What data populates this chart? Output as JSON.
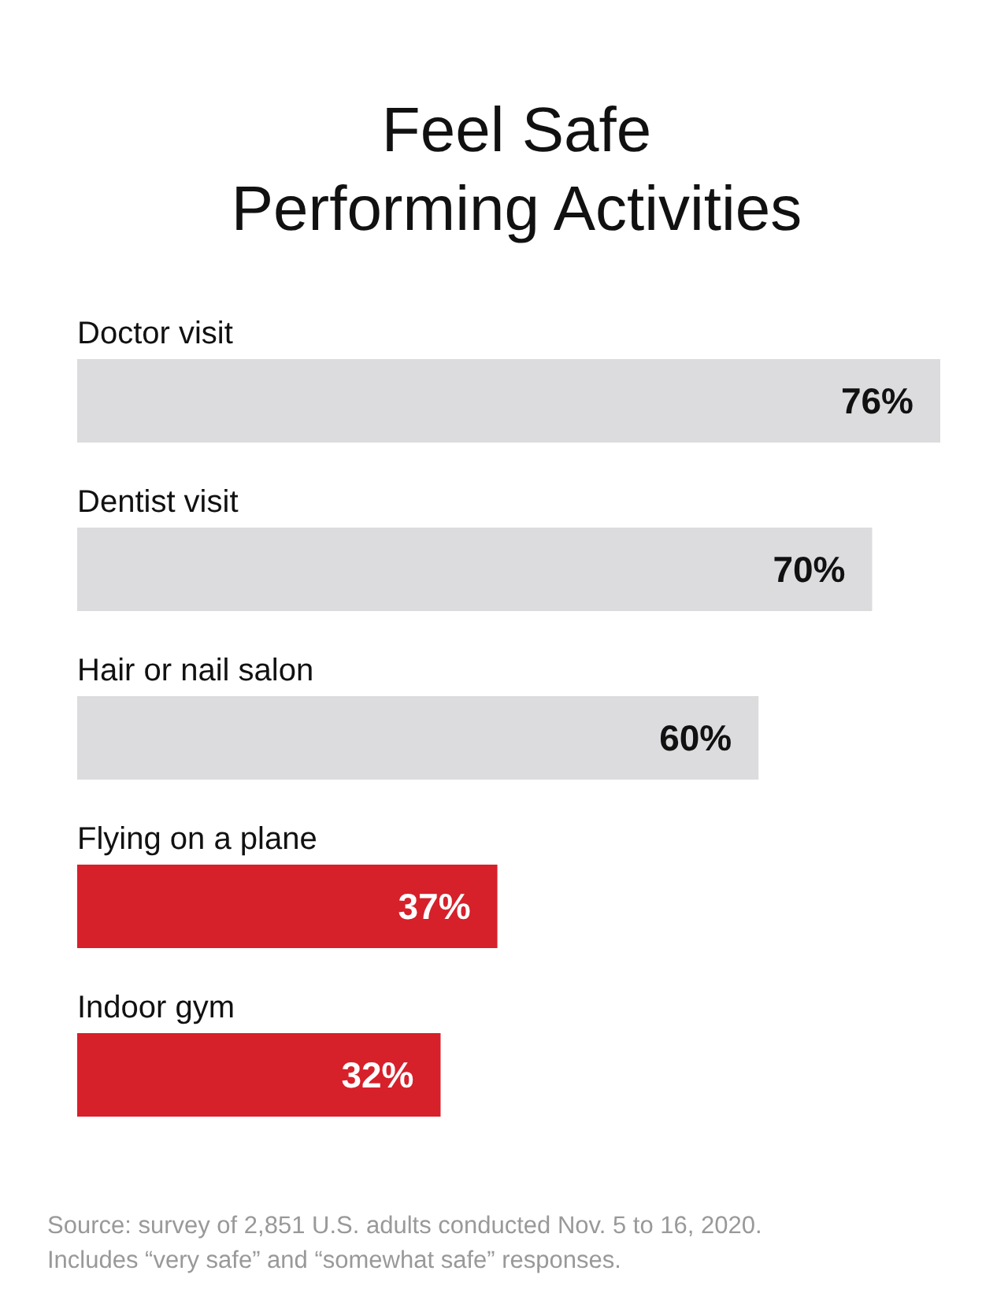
{
  "chart_data": {
    "type": "bar",
    "orientation": "horizontal",
    "title": "Feel Safe\nPerforming Activities",
    "categories": [
      "Doctor visit",
      "Dentist visit",
      "Hair or nail salon",
      "Flying on a plane",
      "Indoor gym"
    ],
    "values": [
      76,
      70,
      60,
      37,
      32
    ],
    "value_labels": [
      "76%",
      "70%",
      "60%",
      "37%",
      "32%"
    ],
    "colors": [
      "#dcdcde",
      "#dcdcde",
      "#dcdcde",
      "#d6202a",
      "#d6202a"
    ],
    "annotations": [
      "Source: survey of 2,851 U.S. adults conducted Nov. 5 to 16, 2020.\nIncludes “very safe” and “somewhat safe” responses."
    ]
  }
}
